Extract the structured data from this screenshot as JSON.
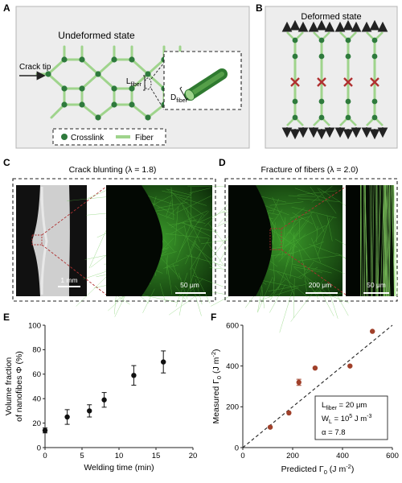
{
  "panels": {
    "A": {
      "letter": "A",
      "title": "Undeformed state",
      "crack_tip_label": "Crack tip",
      "l_fiber_main": "L",
      "l_fiber_sub": "fiber",
      "d_fiber_main": "D",
      "d_fiber_sub": "fiber",
      "legend": {
        "crosslink": "Crosslink",
        "fiber": "Fiber"
      }
    },
    "B": {
      "letter": "B",
      "title": "Deformed state"
    },
    "C": {
      "letter": "C",
      "title": "Crack blunting (λ = 1.8)",
      "scalebar_1": "1 mm",
      "scalebar_2": "50 μm"
    },
    "D": {
      "letter": "D",
      "title": "Fracture of fibers  (λ = 2.0)",
      "scalebar_1": "200 μm",
      "scalebar_2": "50 μm"
    },
    "E": {
      "letter": "E"
    },
    "F": {
      "letter": "F",
      "annotation": {
        "l_main": "L",
        "l_sub": "fiber",
        "l_value": " = 20 μm",
        "w_main": "W",
        "w_sub": "L",
        "w_value": " = 10",
        "w_exp": "5",
        "w_unit": " J m",
        "w_unit_exp": "-3",
        "alpha": "α = 7.8"
      }
    }
  },
  "colors": {
    "fiber": "#9fd48c",
    "crosslink": "#2e7a3c",
    "fracture": "#b03030",
    "arrow": "#555555",
    "marker_E": "#111111",
    "marker_F": "#a0402a"
  },
  "chart_data": [
    {
      "type": "scatter",
      "panel": "E",
      "xlabel": "Welding time (min)",
      "ylabel_line1": "Volume fraction",
      "ylabel_line2": "of nanofibes Φ (%)",
      "xlim": [
        0,
        20
      ],
      "ylim": [
        0,
        100
      ],
      "xticks": [
        0,
        5,
        10,
        15,
        20
      ],
      "yticks": [
        0,
        20,
        40,
        60,
        80,
        100
      ],
      "points": [
        {
          "x": 0,
          "y": 14,
          "err": 2
        },
        {
          "x": 3,
          "y": 25,
          "err": 6
        },
        {
          "x": 6,
          "y": 30,
          "err": 5
        },
        {
          "x": 8,
          "y": 39,
          "err": 6
        },
        {
          "x": 12,
          "y": 59,
          "err": 8
        },
        {
          "x": 16,
          "y": 70,
          "err": 9
        }
      ]
    },
    {
      "type": "scatter",
      "panel": "F",
      "xlabel_main": "Predicted Γ",
      "xlabel_sub": "0",
      "xlabel_unit": " (J m",
      "xlabel_exp": "-2",
      "xlabel_end": ")",
      "ylabel_main": "Measured Γ",
      "ylabel_sub": "0",
      "ylabel_unit": " (J m",
      "ylabel_exp": "-2",
      "ylabel_end": ")",
      "xlim": [
        0,
        600
      ],
      "ylim": [
        0,
        600
      ],
      "xticks": [
        0,
        200,
        400,
        600
      ],
      "yticks": [
        0,
        200,
        400,
        600
      ],
      "points": [
        {
          "x": 110,
          "y": 100,
          "err": 0
        },
        {
          "x": 185,
          "y": 170,
          "err": 0
        },
        {
          "x": 225,
          "y": 320,
          "err": 15
        },
        {
          "x": 290,
          "y": 390,
          "err": 0
        },
        {
          "x": 430,
          "y": 400,
          "err": 0
        },
        {
          "x": 520,
          "y": 570,
          "err": 0
        }
      ],
      "reference_line": "y = x"
    }
  ]
}
